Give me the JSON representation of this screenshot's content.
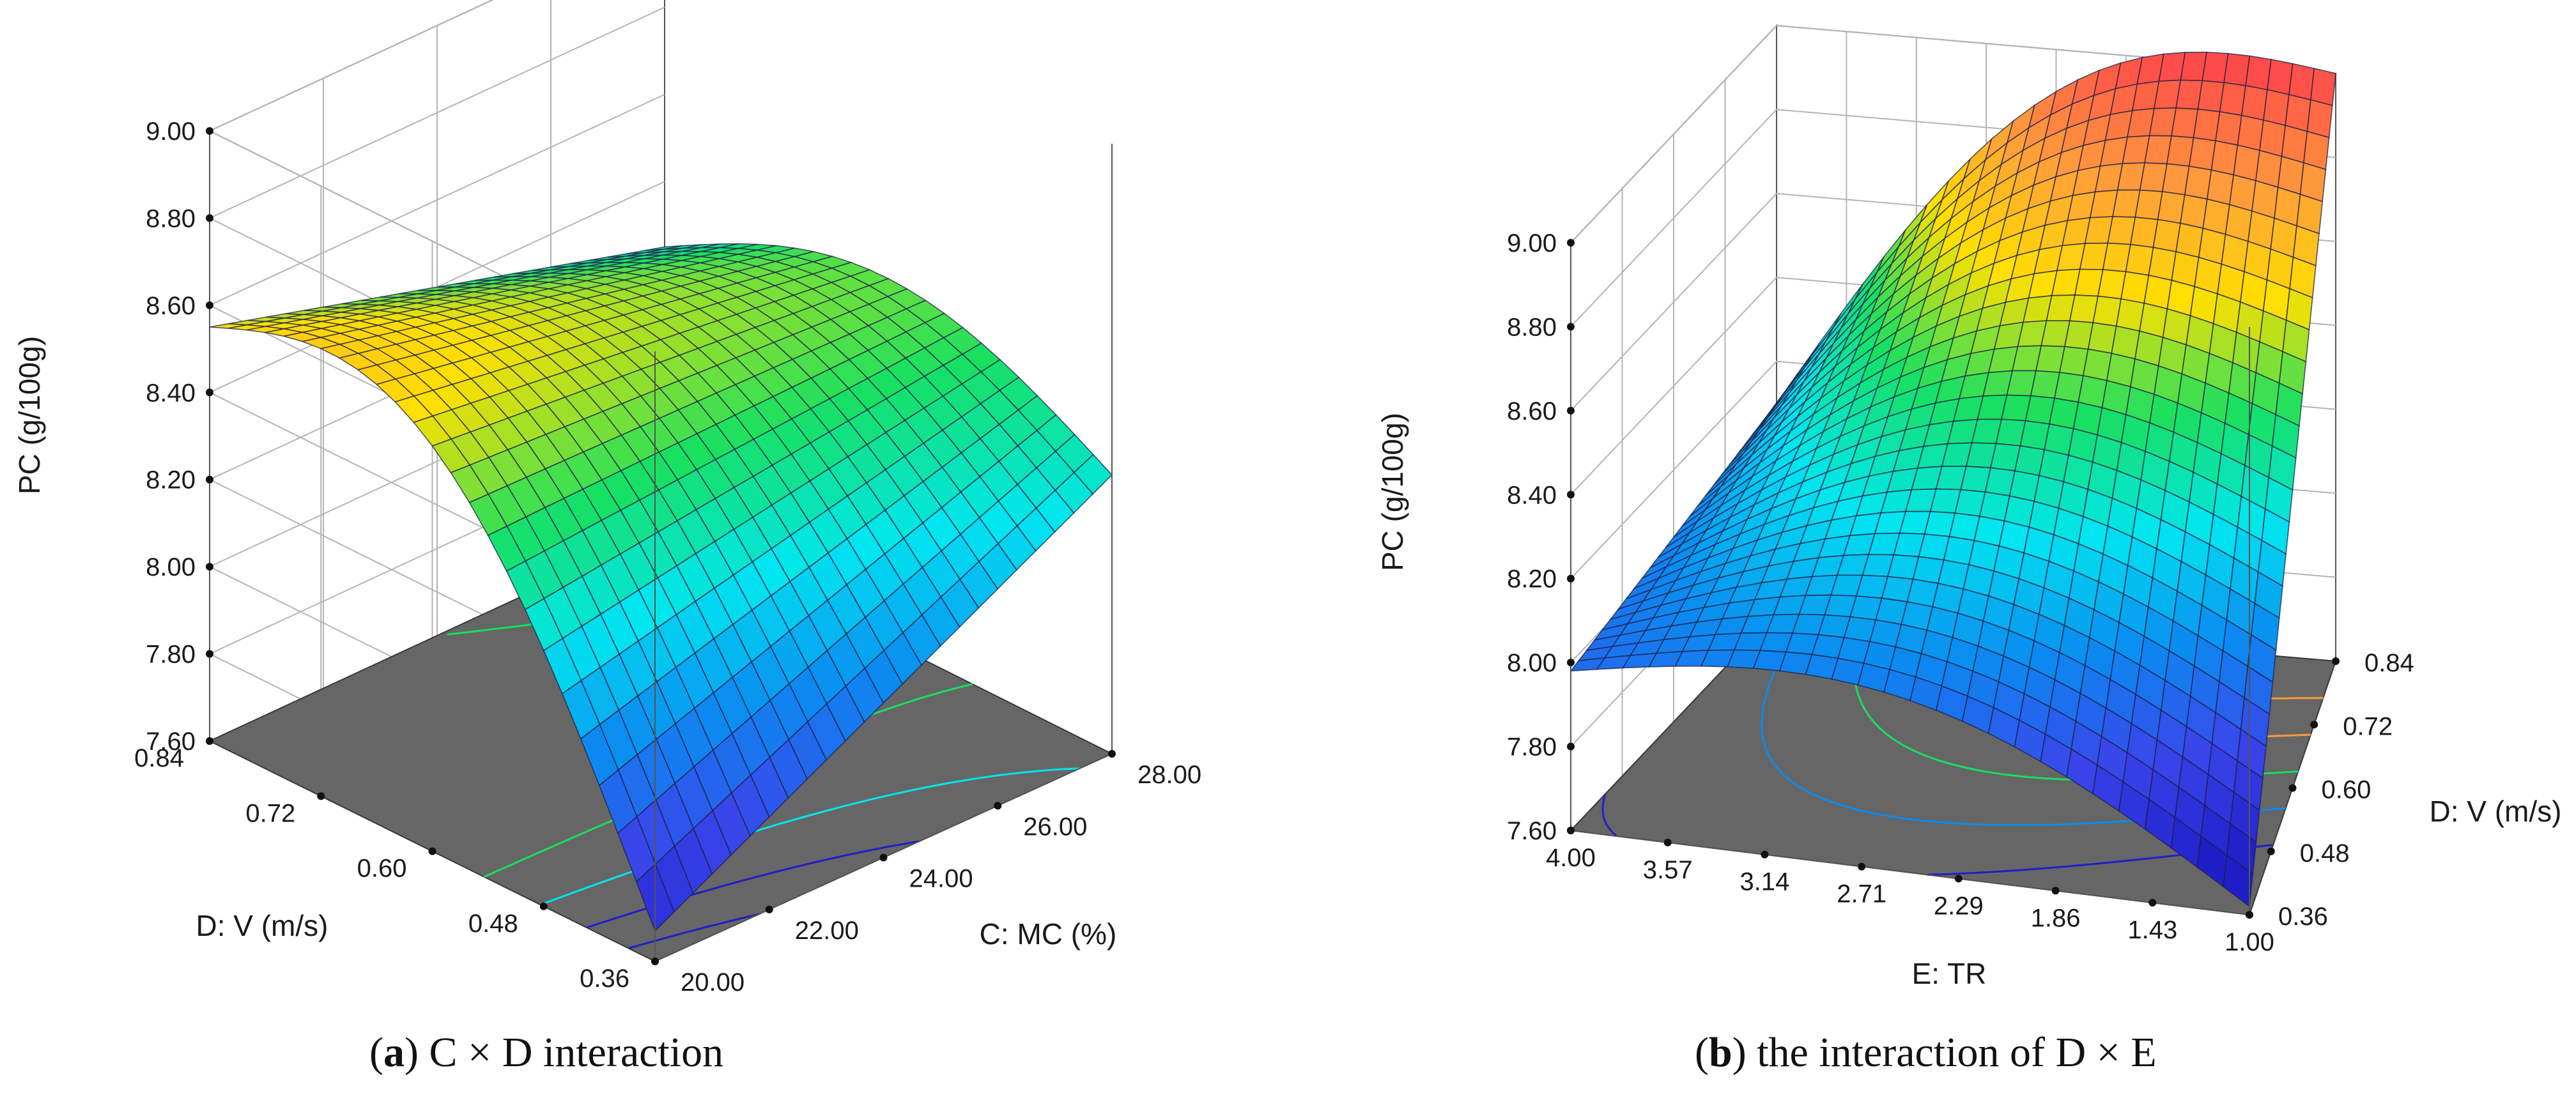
{
  "colors": {
    "floor": "#666666",
    "grid": "#b4b4b4",
    "frame": "#555555",
    "mesh": "#1e1e46"
  },
  "colormap": [
    "#1e1ec8",
    "#3a44ea",
    "#0a8cf0",
    "#00e6f0",
    "#18e060",
    "#ffe000",
    "#ff9a3c",
    "#ff4a4a"
  ],
  "charts": [
    {
      "caption_letter": "a",
      "caption_text": "C × D interaction",
      "caption_full": "(a) C × D interaction",
      "zlabel": "PC (g/100g)",
      "xlabel": "C: MC (%)",
      "ylabel": "D: V (m/s)",
      "zticks": [
        "7.60",
        "7.80",
        "8.00",
        "8.20",
        "8.40",
        "8.60",
        "8.80",
        "9.00"
      ],
      "xticks": [
        "20.00",
        "22.00",
        "24.00",
        "26.00",
        "28.00"
      ],
      "yticks": [
        "0.36",
        "0.48",
        "0.60",
        "0.72",
        "0.84"
      ]
    },
    {
      "caption_letter": "b",
      "caption_text": "the interaction of D × E",
      "caption_full": "(b) the interaction of D × E",
      "zlabel": "PC (g/100g)",
      "xlabel": "E: TR",
      "ylabel": "D: V (m/s)",
      "zticks": [
        "7.60",
        "7.80",
        "8.00",
        "8.20",
        "8.40",
        "8.60",
        "8.80",
        "9.00"
      ],
      "xticks": [
        "4.00",
        "3.57",
        "3.14",
        "2.71",
        "2.29",
        "1.86",
        "1.43",
        "1.00"
      ],
      "yticks": [
        "0.36",
        "0.48",
        "0.60",
        "0.72",
        "0.84"
      ]
    }
  ],
  "chart_data": [
    {
      "type": "surface3d",
      "title": "(a) C × D interaction",
      "xlabel": "C: MC (%)",
      "ylabel": "D: V (m/s)",
      "zlabel": "PC (g/100g)",
      "xlim": [
        20.0,
        28.0
      ],
      "ylim": [
        0.36,
        0.84
      ],
      "zlim": [
        7.6,
        9.0
      ],
      "x_ticks": [
        20.0,
        22.0,
        24.0,
        26.0,
        28.0
      ],
      "y_ticks": [
        0.36,
        0.48,
        0.6,
        0.72,
        0.84
      ],
      "z_ticks": [
        7.6,
        7.8,
        8.0,
        8.2,
        8.4,
        8.6,
        8.8,
        9.0
      ],
      "corners": {
        "x20_y036": 7.67,
        "x28_y036": 8.24,
        "x20_y084": 8.55,
        "x28_y084": 8.25
      },
      "peak": {
        "x": 21.5,
        "y": 0.72,
        "z": 8.72
      },
      "contour_levels": [
        7.8,
        8.0,
        8.2,
        8.4
      ]
    },
    {
      "type": "surface3d",
      "title": "(b) the interaction of D × E",
      "xlabel": "E: TR",
      "ylabel": "D: V (m/s)",
      "zlabel": "PC (g/100g)",
      "xlim": [
        4.0,
        1.0
      ],
      "ylim": [
        0.36,
        0.84
      ],
      "zlim": [
        7.6,
        9.0
      ],
      "x_ticks": [
        4.0,
        3.57,
        3.14,
        2.71,
        2.29,
        1.86,
        1.43,
        1.0
      ],
      "y_ticks": [
        0.36,
        0.48,
        0.6,
        0.72,
        0.84
      ],
      "z_ticks": [
        7.6,
        7.8,
        8.0,
        8.2,
        8.4,
        8.6,
        8.8,
        9.0
      ],
      "corners": {
        "x4_y036": 7.98,
        "x1_y036": 7.62,
        "x4_y084": 8.1,
        "x1_y084": 9.0
      },
      "contour_levels": [
        8.0,
        8.2,
        8.4,
        8.6,
        8.8
      ]
    }
  ]
}
